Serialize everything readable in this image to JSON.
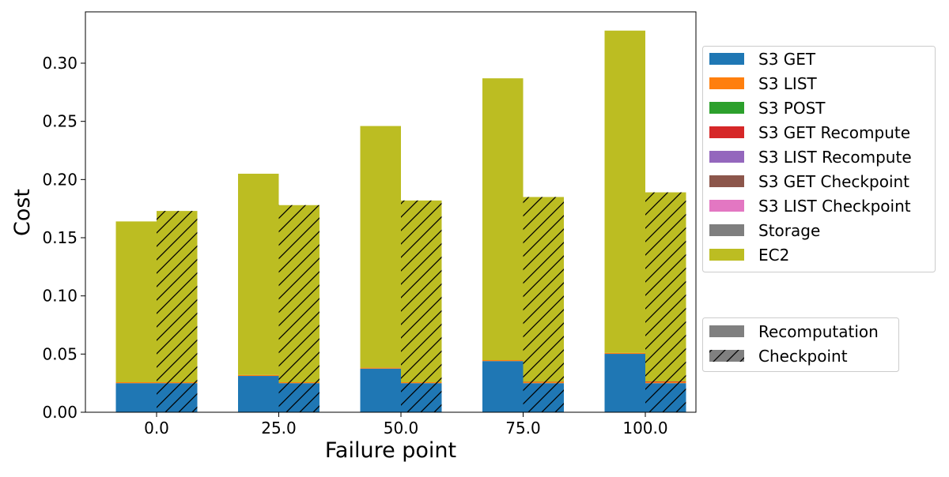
{
  "chart_data": {
    "type": "bar",
    "stacked": true,
    "xlabel": "Failure point",
    "ylabel": "Cost",
    "categories": [
      "0.0",
      "25.0",
      "50.0",
      "75.0",
      "100.0"
    ],
    "ylim": [
      0,
      0.345
    ],
    "yticks": [
      "0.00",
      "0.05",
      "0.10",
      "0.15",
      "0.20",
      "0.25",
      "0.30"
    ],
    "grid": false,
    "legend_placement": "right",
    "components": [
      {
        "name": "S3 GET",
        "color": "#1f77b4"
      },
      {
        "name": "S3 LIST",
        "color": "#ff7f0e"
      },
      {
        "name": "S3 POST",
        "color": "#2ca02c"
      },
      {
        "name": "S3 GET Recompute",
        "color": "#d62728"
      },
      {
        "name": "S3 LIST Recompute",
        "color": "#9467bd"
      },
      {
        "name": "S3 GET Checkpoint",
        "color": "#8c564b"
      },
      {
        "name": "S3 LIST Checkpoint",
        "color": "#e377c2"
      },
      {
        "name": "Storage",
        "color": "#7f7f7f"
      },
      {
        "name": "EC2",
        "color": "#bcbd22"
      }
    ],
    "groups": [
      {
        "name": "Recomputation",
        "hatch": false,
        "values": {
          "S3 GET": [
            0.025,
            0.0312,
            0.0375,
            0.044,
            0.0502
          ],
          "S3 LIST": [
            0.0008,
            0.0008,
            0.0008,
            0.0008,
            0.0008
          ],
          "S3 POST": [
            0,
            0,
            0,
            0,
            0
          ],
          "S3 GET Recompute": [
            0,
            0,
            0,
            0,
            0
          ],
          "S3 LIST Recompute": [
            0,
            0,
            0,
            0,
            0
          ],
          "S3 GET Checkpoint": [
            0,
            0,
            0,
            0,
            0
          ],
          "S3 LIST Checkpoint": [
            0,
            0,
            0,
            0,
            0
          ],
          "Storage": [
            0,
            0,
            0,
            0,
            0
          ],
          "EC2": [
            0.1382,
            0.173,
            0.2077,
            0.2422,
            0.277
          ]
        }
      },
      {
        "name": "Checkpoint",
        "hatch": true,
        "values": {
          "S3 GET": [
            0.025,
            0.025,
            0.025,
            0.025,
            0.025
          ],
          "S3 LIST": [
            0.0008,
            0.0008,
            0.0008,
            0.0008,
            0.0008
          ],
          "S3 POST": [
            0,
            0,
            0,
            0,
            0
          ],
          "S3 GET Recompute": [
            0,
            0,
            0,
            0.0003,
            0.0006
          ],
          "S3 LIST Recompute": [
            0,
            0,
            0,
            0,
            0
          ],
          "S3 GET Checkpoint": [
            0,
            0,
            0,
            0,
            0
          ],
          "S3 LIST Checkpoint": [
            0,
            0,
            0,
            0,
            0
          ],
          "Storage": [
            0,
            0,
            0,
            0,
            0
          ],
          "EC2": [
            0.1472,
            0.1522,
            0.1562,
            0.1589,
            0.1626
          ]
        }
      }
    ]
  }
}
